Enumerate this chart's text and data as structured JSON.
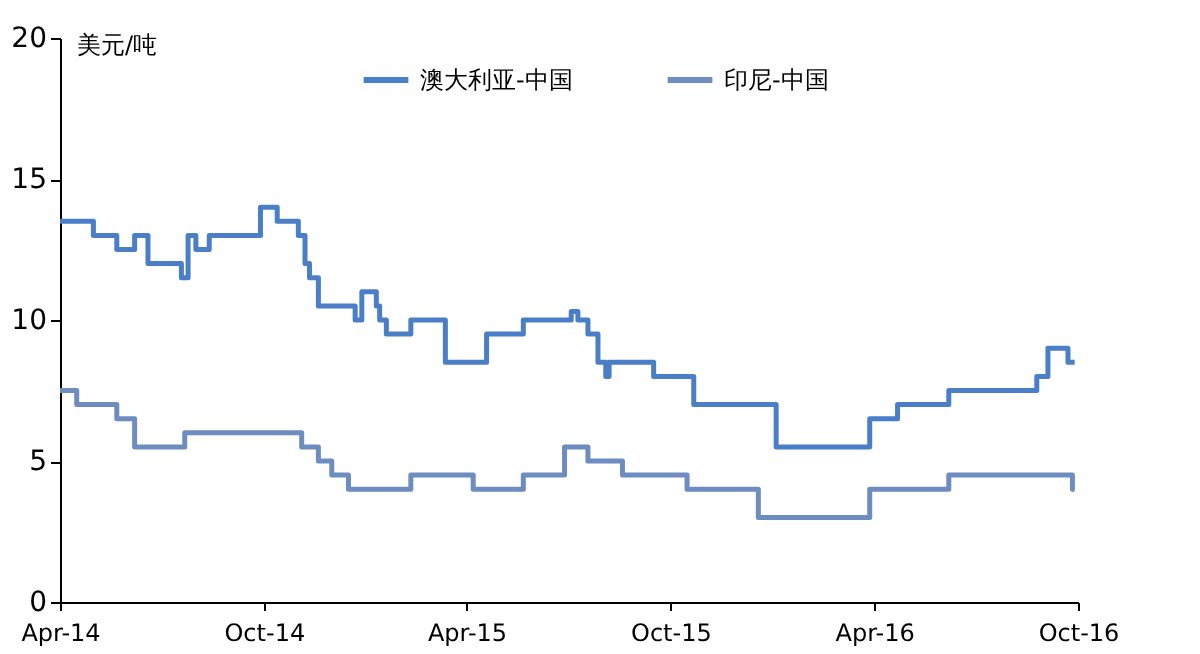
{
  "chart_data": {
    "type": "step",
    "ylabel": "美元/吨",
    "legend": "top",
    "grid": false,
    "xlim": [
      "2014-04-01",
      "2016-10-01"
    ],
    "xticks": [
      {
        "value": "2014-04-01",
        "label": "Apr-14"
      },
      {
        "value": "2014-10-01",
        "label": "Oct-14"
      },
      {
        "value": "2015-04-01",
        "label": "Apr-15"
      },
      {
        "value": "2015-10-01",
        "label": "Oct-15"
      },
      {
        "value": "2016-04-01",
        "label": "Apr-16"
      },
      {
        "value": "2016-10-01",
        "label": "Oct-16"
      }
    ],
    "ylim": [
      0,
      20
    ],
    "yticks": [
      0,
      5,
      10,
      15,
      20
    ],
    "series": [
      {
        "name": "澳大利亚-中国",
        "color": "#4a7fc8",
        "x": [
          "2014-04-01",
          "2014-05-01",
          "2014-05-22",
          "2014-06-07",
          "2014-06-19",
          "2014-07-19",
          "2014-07-25",
          "2014-08-01",
          "2014-08-13",
          "2014-09-28",
          "2014-10-13",
          "2014-11-01",
          "2014-11-07",
          "2014-11-11",
          "2014-11-19",
          "2014-12-22",
          "2014-12-28",
          "2015-01-10",
          "2015-01-13",
          "2015-01-19",
          "2015-02-10",
          "2015-03-13",
          "2015-04-19",
          "2015-05-22",
          "2015-07-04",
          "2015-07-10",
          "2015-07-19",
          "2015-07-28",
          "2015-08-04",
          "2015-08-07",
          "2015-09-16",
          "2015-10-22",
          "2016-01-04",
          "2016-03-28",
          "2016-04-22",
          "2016-06-07",
          "2016-08-25",
          "2016-09-04",
          "2016-09-22",
          "2016-09-28"
        ],
        "values": [
          13.5,
          13,
          12.5,
          13,
          12,
          11.5,
          13,
          12.5,
          13,
          14,
          13.5,
          13,
          12,
          11.5,
          10.5,
          10,
          11,
          10.5,
          10,
          9.5,
          10,
          8.5,
          9.5,
          10,
          10.3,
          10,
          9.5,
          8.5,
          8,
          8.5,
          8,
          7,
          5.5,
          6.5,
          7,
          7.5,
          8,
          9,
          8.5,
          8.5
        ]
      },
      {
        "name": "印尼-中国",
        "color": "#6d8cbf",
        "x": [
          "2014-04-01",
          "2014-04-16",
          "2014-05-22",
          "2014-06-07",
          "2014-07-22",
          "2014-11-04",
          "2014-11-19",
          "2014-12-01",
          "2014-12-16",
          "2015-02-10",
          "2015-04-07",
          "2015-05-22",
          "2015-06-28",
          "2015-07-19",
          "2015-08-19",
          "2015-10-16",
          "2015-12-19",
          "2016-03-28",
          "2016-06-07",
          "2016-09-26",
          "2016-09-28"
        ],
        "values": [
          7.5,
          7,
          6.5,
          5.5,
          6,
          5.5,
          5,
          4.5,
          4,
          4.5,
          4,
          4.5,
          5.5,
          5,
          4.5,
          4,
          3,
          4,
          4.5,
          4,
          4
        ]
      }
    ]
  }
}
